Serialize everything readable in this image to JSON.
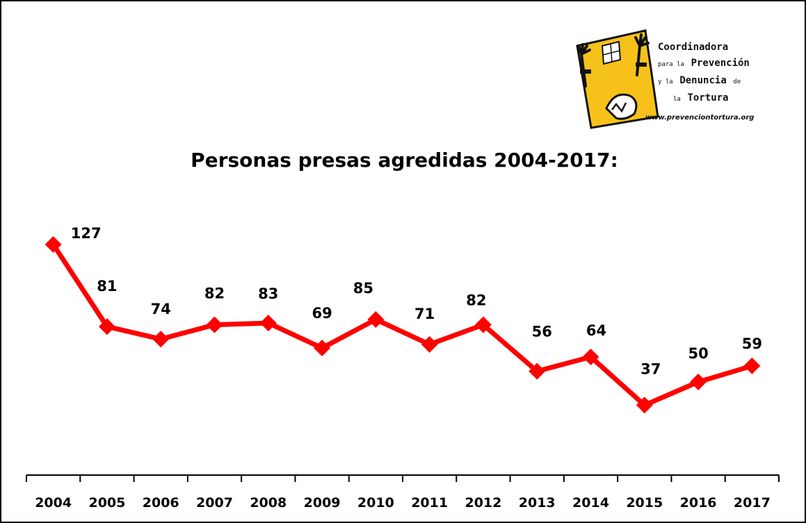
{
  "logo": {
    "line1": "Coordinadora",
    "line2_small": "para la",
    "line2_big": "Prevención",
    "line3_small": "y la",
    "line3_big": "Denuncia",
    "line3_small_end": "de",
    "line4_small": "la",
    "line4_big": "Tortura",
    "url": "www.prevenciontortura.org",
    "colors": {
      "yellow": "#f6c21a",
      "outline": "#111111"
    }
  },
  "chart_data": {
    "type": "line",
    "title": "Personas presas agredidas 2004-2017:",
    "categories": [
      "2004",
      "2005",
      "2006",
      "2007",
      "2008",
      "2009",
      "2010",
      "2011",
      "2012",
      "2013",
      "2014",
      "2015",
      "2016",
      "2017"
    ],
    "series": [
      {
        "values": [
          127,
          81,
          74,
          82,
          83,
          69,
          85,
          71,
          82,
          56,
          64,
          37,
          50,
          59
        ]
      }
    ],
    "xlabel": "",
    "ylabel": "",
    "ylim": [
      0,
      140
    ],
    "grid": false,
    "legend": "none",
    "colors": {
      "line": "#ff0000",
      "axis": "#000000"
    }
  }
}
